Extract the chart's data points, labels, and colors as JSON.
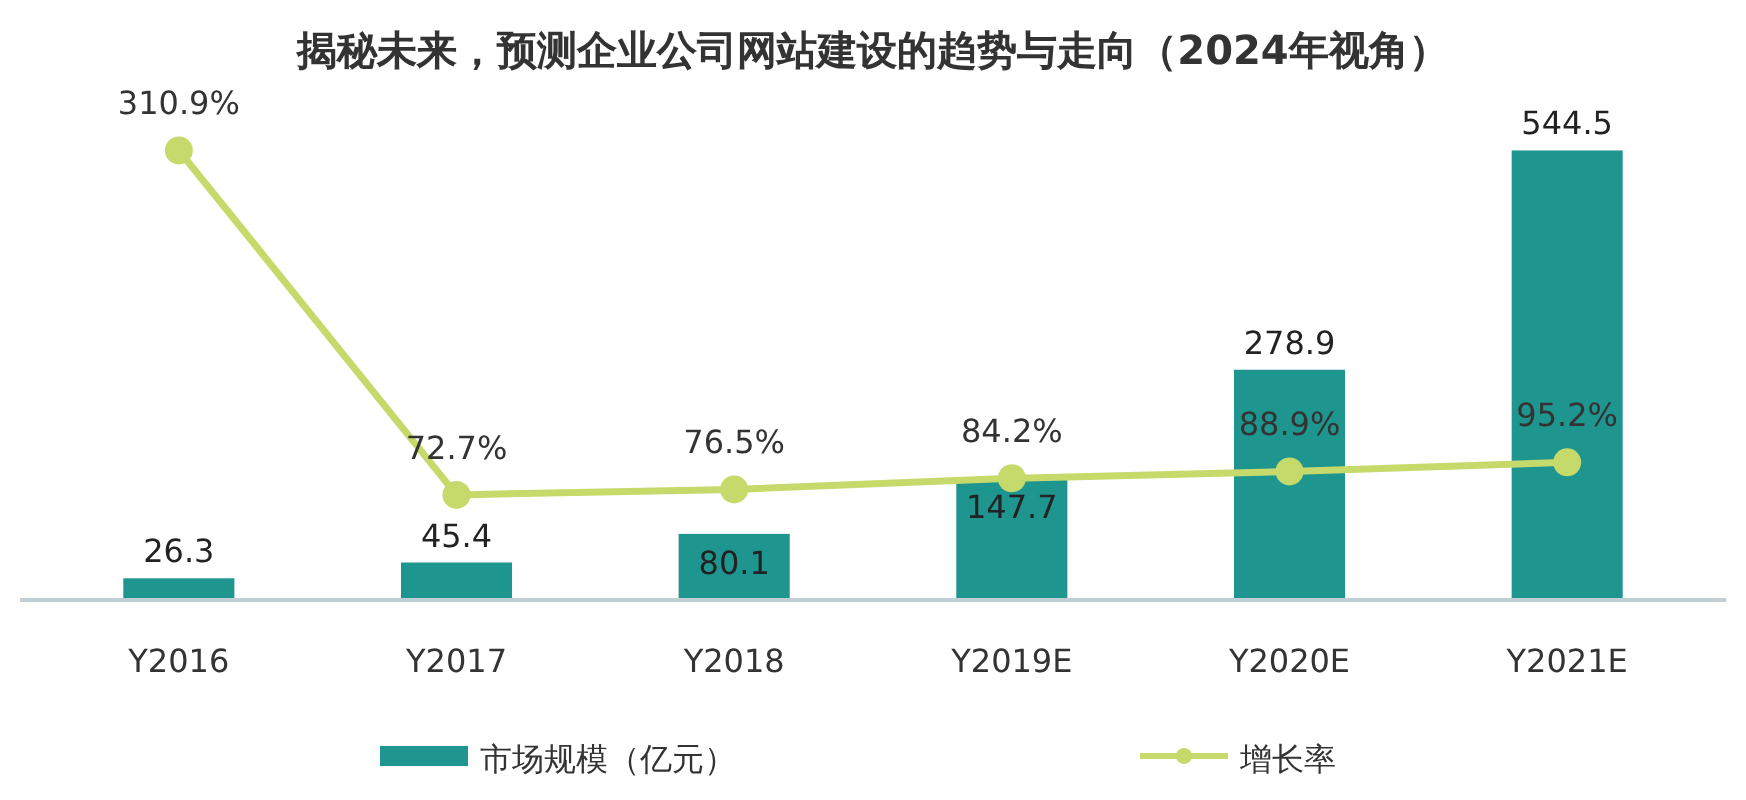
{
  "chart_data": {
    "type": "bar",
    "title": "揭秘未来，预测企业公司网站建设的趋势与走向（2024年视角）",
    "categories": [
      "Y2016",
      "Y2017",
      "Y2018",
      "Y2019E",
      "Y2020E",
      "Y2021E"
    ],
    "series": [
      {
        "name": "市场规模（亿元）",
        "color": "#1f9590",
        "values": [
          26.3,
          45.4,
          80.1,
          147.7,
          278.9,
          544.5
        ]
      },
      {
        "name": "增长率",
        "type": "line",
        "axis": "y2",
        "color": "#c5da6a",
        "values": [
          310.9,
          72.7,
          76.5,
          84.2,
          88.9,
          95.2
        ],
        "value_labels": [
          "310.9%",
          "72.7%",
          "76.5%",
          "84.2%",
          "88.9%",
          "95.2%"
        ]
      }
    ],
    "data_labels": true,
    "legend": "bottom",
    "marker": "circle",
    "line_style": "solid",
    "tick_labels": "x"
  }
}
